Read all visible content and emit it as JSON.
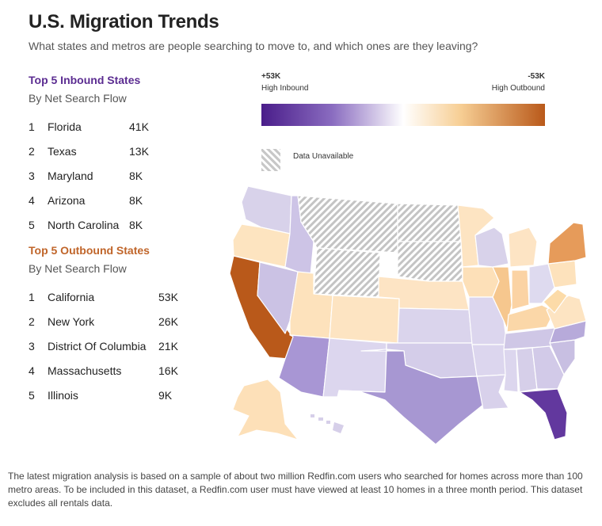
{
  "header": {
    "title": "U.S. Migration Trends",
    "subtitle": "What states and metros are people searching to move to, and which ones are they leaving?"
  },
  "inbound": {
    "title": "Top 5 Inbound States",
    "subtitle": "By Net Search Flow",
    "rows": [
      {
        "rank": "1",
        "name": "Florida",
        "value": "41K"
      },
      {
        "rank": "2",
        "name": "Texas",
        "value": "13K"
      },
      {
        "rank": "3",
        "name": "Maryland",
        "value": "8K"
      },
      {
        "rank": "4",
        "name": "Arizona",
        "value": "8K"
      },
      {
        "rank": "5",
        "name": "North Carolina",
        "value": "8K"
      }
    ]
  },
  "outbound": {
    "title": "Top 5 Outbound States",
    "subtitle": "By Net Search Flow",
    "rows": [
      {
        "rank": "1",
        "name": "California",
        "value": "53K"
      },
      {
        "rank": "2",
        "name": "New York",
        "value": "26K"
      },
      {
        "rank": "3",
        "name": "District Of Columbia",
        "value": "21K"
      },
      {
        "rank": "4",
        "name": "Massachusetts",
        "value": "16K"
      },
      {
        "rank": "5",
        "name": "Illinois",
        "value": "9K"
      }
    ]
  },
  "legend": {
    "left_value": "+53K",
    "left_label": "High Inbound",
    "right_value": "-53K",
    "right_label": "High Outbound",
    "unavailable_label": "Data Unavailable",
    "colors": {
      "inbound_high": "#4a1d8a",
      "neutral": "#ffffff",
      "outbound_high": "#b9591a"
    }
  },
  "footnote": "The latest migration analysis is based on a sample of about two million Redfin.com users who searched for homes across more than 100 metro areas. To be included in this dataset, a Redfin.com user must have viewed at least 10 homes in a three month period. This dataset excludes all rentals data."
}
